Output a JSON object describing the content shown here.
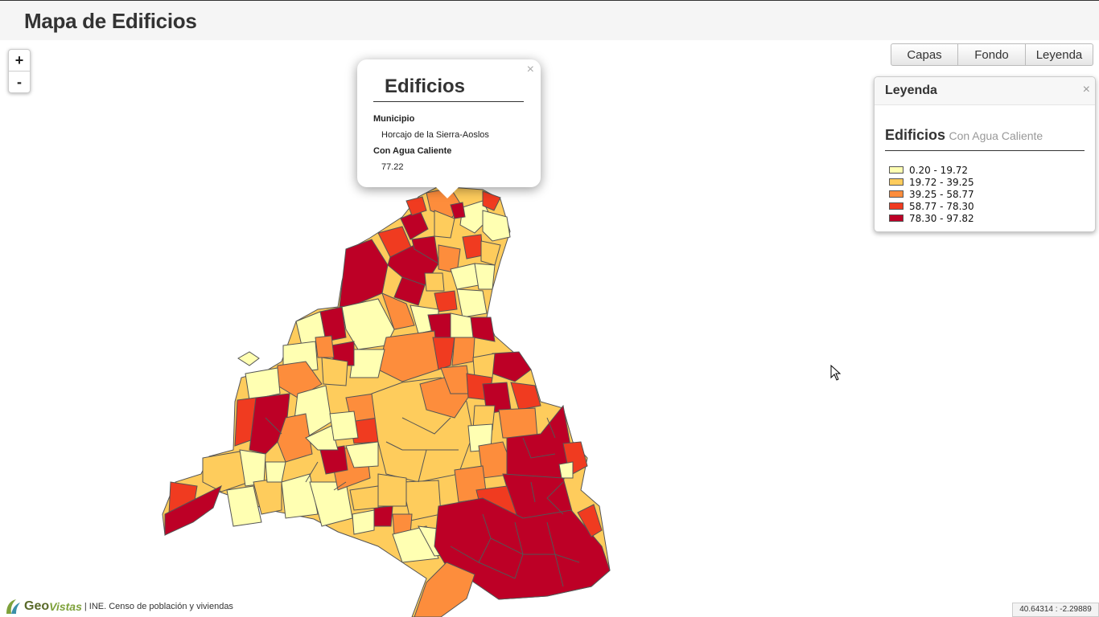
{
  "header": {
    "title": "Mapa de Edificios"
  },
  "zoom": {
    "in_label": "+",
    "out_label": "-"
  },
  "toolbar": {
    "buttons": [
      "Capas",
      "Fondo",
      "Leyenda"
    ]
  },
  "legend": {
    "title": "Leyenda",
    "close": "×",
    "layer": "Edificios",
    "field": "Con Agua Caliente",
    "classes": [
      {
        "label": "0.20 - 19.72",
        "color": "#ffffb2"
      },
      {
        "label": "19.72 - 39.25",
        "color": "#fecc5c"
      },
      {
        "label": "39.25 - 58.77",
        "color": "#fd8d3c"
      },
      {
        "label": "58.77 - 78.30",
        "color": "#f03b20"
      },
      {
        "label": "78.30 - 97.82",
        "color": "#bd0026"
      }
    ]
  },
  "popup": {
    "title": "Edificios",
    "close": "×",
    "fields": [
      {
        "label": "Municipio",
        "value": "Horcajo de la Sierra-Aoslos"
      },
      {
        "label": "Con Agua Caliente",
        "value": "77.22"
      }
    ]
  },
  "footer": {
    "logo_geo": "Geo",
    "logo_vistas": "Vistas",
    "attribution": "| INE. Censo de población y viviendas"
  },
  "status": {
    "coordinates": "40.64314 : -2.29889"
  },
  "map_style": {
    "stroke": "#555555"
  }
}
